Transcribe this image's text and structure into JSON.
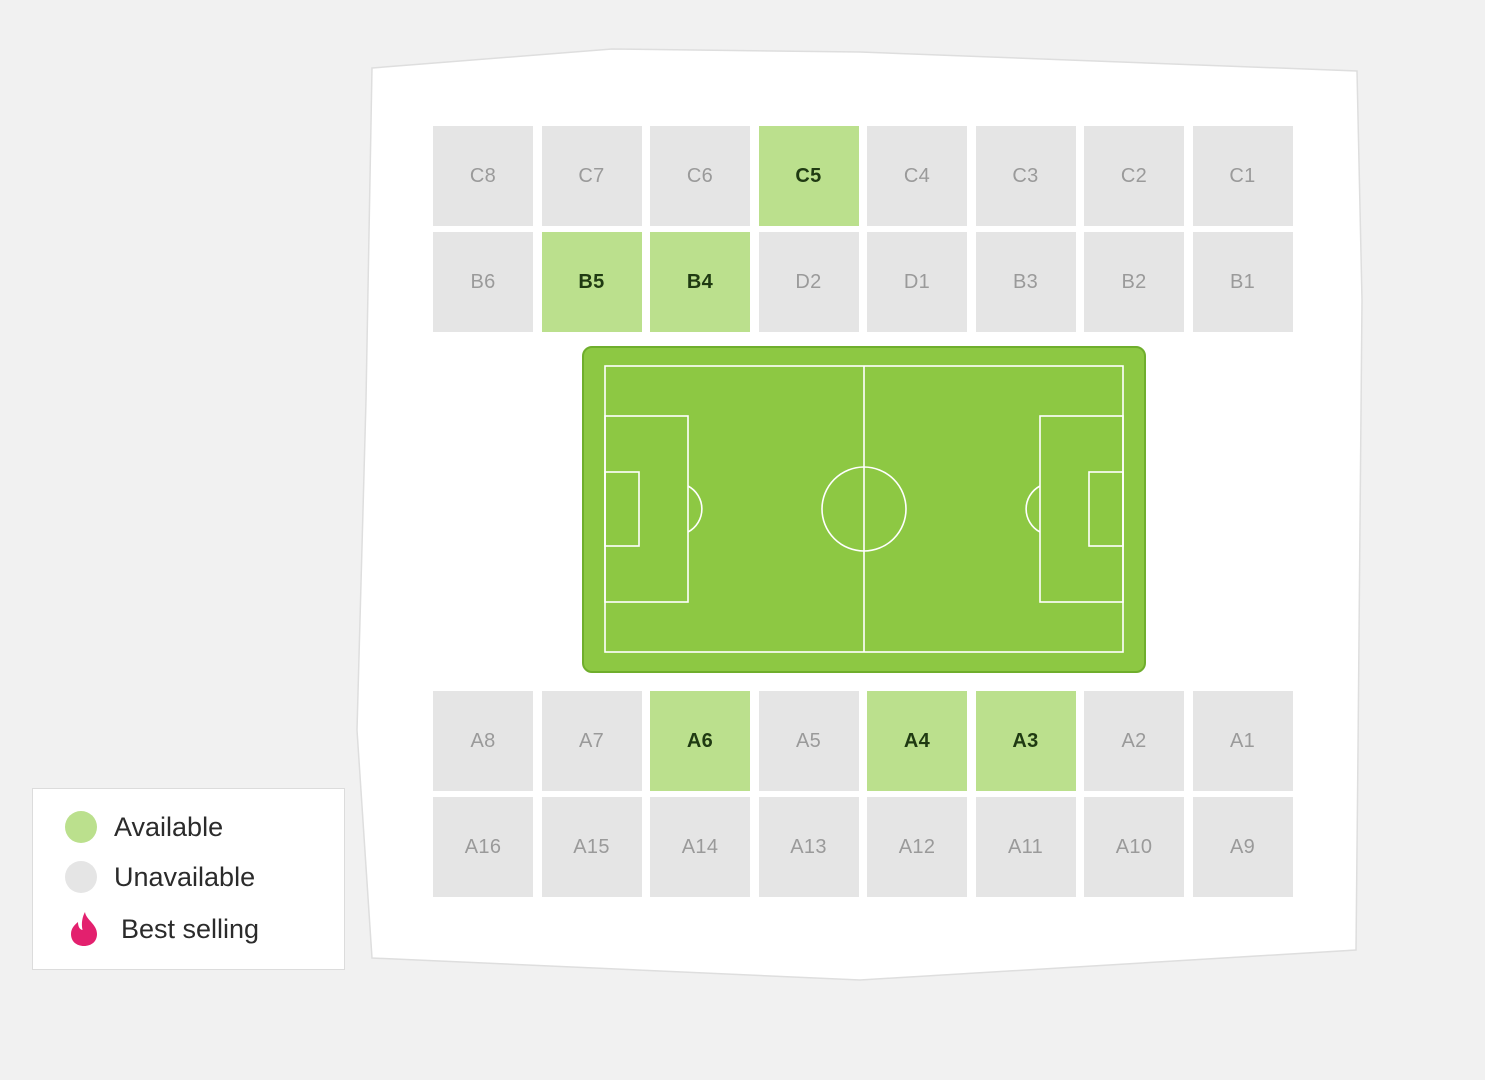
{
  "colors": {
    "background": "#f1f1f1",
    "stadium": "#ffffff",
    "available": "#bbe08d",
    "unavailable": "#e5e5e5",
    "pitch": "#8dc843",
    "pitch_border": "#6fae2c",
    "best_selling": "#e3206e"
  },
  "seating_map": {
    "row_c": [
      {
        "label": "C8",
        "status": "unavailable"
      },
      {
        "label": "C7",
        "status": "unavailable"
      },
      {
        "label": "C6",
        "status": "unavailable"
      },
      {
        "label": "C5",
        "status": "available"
      },
      {
        "label": "C4",
        "status": "unavailable"
      },
      {
        "label": "C3",
        "status": "unavailable"
      },
      {
        "label": "C2",
        "status": "unavailable"
      },
      {
        "label": "C1",
        "status": "unavailable"
      }
    ],
    "row_b": [
      {
        "label": "B6",
        "status": "unavailable"
      },
      {
        "label": "B5",
        "status": "available"
      },
      {
        "label": "B4",
        "status": "available"
      },
      {
        "label": "D2",
        "status": "unavailable"
      },
      {
        "label": "D1",
        "status": "unavailable"
      },
      {
        "label": "B3",
        "status": "unavailable"
      },
      {
        "label": "B2",
        "status": "unavailable"
      },
      {
        "label": "B1",
        "status": "unavailable"
      }
    ],
    "row_a_top": [
      {
        "label": "A8",
        "status": "unavailable"
      },
      {
        "label": "A7",
        "status": "unavailable"
      },
      {
        "label": "A6",
        "status": "available"
      },
      {
        "label": "A5",
        "status": "unavailable"
      },
      {
        "label": "A4",
        "status": "available"
      },
      {
        "label": "A3",
        "status": "available"
      },
      {
        "label": "A2",
        "status": "unavailable"
      },
      {
        "label": "A1",
        "status": "unavailable"
      }
    ],
    "row_a_bottom": [
      {
        "label": "A16",
        "status": "unavailable"
      },
      {
        "label": "A15",
        "status": "unavailable"
      },
      {
        "label": "A14",
        "status": "unavailable"
      },
      {
        "label": "A13",
        "status": "unavailable"
      },
      {
        "label": "A12",
        "status": "unavailable"
      },
      {
        "label": "A11",
        "status": "unavailable"
      },
      {
        "label": "A10",
        "status": "unavailable"
      },
      {
        "label": "A9",
        "status": "unavailable"
      }
    ]
  },
  "legend": {
    "available": {
      "label": "Available",
      "icon": "green-dot-icon"
    },
    "unavailable": {
      "label": "Unavailable",
      "icon": "grey-dot-icon"
    },
    "best_selling": {
      "label": "Best selling",
      "icon": "flame-icon"
    }
  }
}
